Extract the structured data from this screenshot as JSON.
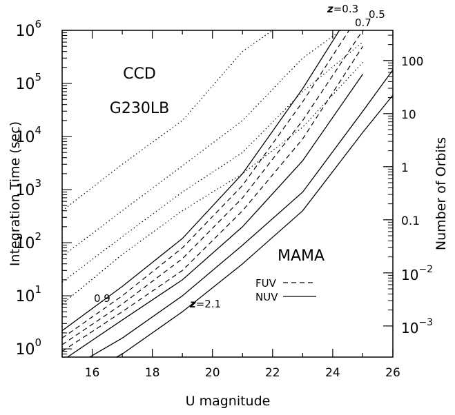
{
  "chart_data": {
    "type": "line",
    "xlabel": "U magnitude",
    "ylabel": "Integration Time (sec)",
    "ylabel_right": "Number of Orbits",
    "xlim": [
      15,
      26
    ],
    "ylim": [
      0.7,
      1000000
    ],
    "y_scale": "log",
    "x_ticks": [
      "16",
      "18",
      "20",
      "22",
      "24",
      "26"
    ],
    "y_ticks": [
      {
        "base": "10",
        "exp": "0"
      },
      {
        "base": "10",
        "exp": "1"
      },
      {
        "base": "10",
        "exp": "2"
      },
      {
        "base": "10",
        "exp": "3"
      },
      {
        "base": "10",
        "exp": "4"
      },
      {
        "base": "10",
        "exp": "5"
      },
      {
        "base": "10",
        "exp": "6"
      }
    ],
    "right_ticks": [
      {
        "text": "100",
        "seconds": 270000
      },
      {
        "text": "10",
        "seconds": 27000
      },
      {
        "text": "1",
        "seconds": 2700
      },
      {
        "text": "0.1",
        "seconds": 270
      },
      {
        "base": "10",
        "exp": "−2",
        "seconds": 27
      },
      {
        "base": "10",
        "exp": "−3",
        "seconds": 2.7
      }
    ],
    "annotations": {
      "ccd": "CCD",
      "grating": "G230LB",
      "mama": "MAMA",
      "legend_fuv": "FUV",
      "legend_nuv": "NUV",
      "z_prefix": "z",
      "z_low": "=0.3",
      "z_mid1": "0.7",
      "z_mid2": "0.5",
      "z_high": "=2.1",
      "z_09": "0.9"
    },
    "series": [
      {
        "style": "dotted",
        "x": [
          15,
          17,
          19,
          21,
          23,
          25
        ],
        "y": [
          400,
          3000,
          20000,
          400000,
          2500000,
          10000000
        ]
      },
      {
        "style": "dotted",
        "x": [
          15,
          17,
          19,
          21,
          23,
          25
        ],
        "y": [
          55,
          400,
          2800,
          20000,
          300000,
          2000000
        ]
      },
      {
        "style": "dotted",
        "x": [
          15,
          17,
          19,
          21,
          23,
          25
        ],
        "y": [
          18,
          130,
          900,
          5000,
          70000,
          600000
        ]
      },
      {
        "style": "dotted",
        "x": [
          15,
          17,
          19,
          21,
          23,
          25
        ],
        "y": [
          7,
          60,
          400,
          2000,
          15000,
          250000
        ]
      },
      {
        "style": "solid",
        "x": [
          15,
          17,
          19,
          21,
          23,
          25
        ],
        "y": [
          2.2,
          15,
          120,
          2000,
          80000,
          5000000
        ]
      },
      {
        "style": "dashed",
        "x": [
          15,
          17,
          19,
          21,
          23,
          25
        ],
        "y": [
          1.6,
          10,
          80,
          1200,
          45000,
          2500000
        ]
      },
      {
        "style": "dashed",
        "x": [
          15,
          17,
          19,
          21,
          23,
          25
        ],
        "y": [
          1.2,
          7,
          50,
          700,
          20000,
          1000000
        ]
      },
      {
        "style": "dashed",
        "x": [
          15,
          17,
          19,
          21,
          23,
          25
        ],
        "y": [
          0.9,
          5,
          30,
          400,
          9000,
          500000
        ]
      },
      {
        "style": "solid",
        "x": [
          15,
          17,
          19,
          21,
          23,
          25
        ],
        "y": [
          0.6,
          3.5,
          20,
          200,
          3500,
          150000
        ]
      },
      {
        "style": "solid",
        "x": [
          15,
          17,
          19,
          21,
          23,
          25,
          26
        ],
        "y": [
          0.35,
          1.6,
          10,
          90,
          900,
          30000,
          180000
        ]
      },
      {
        "style": "solid",
        "x": [
          15,
          17,
          19,
          21,
          23,
          25,
          26
        ],
        "y": [
          0.2,
          0.8,
          5,
          40,
          400,
          12000,
          60000
        ]
      }
    ]
  }
}
